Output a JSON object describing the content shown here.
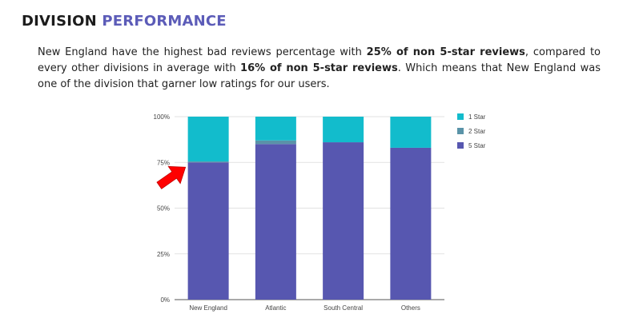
{
  "header": {
    "title_part1": "DIVISION",
    "title_part2": "PERFORMANCE",
    "accent_color": "#5c5cb8"
  },
  "description": {
    "text_1": "New England have the highest bad reviews percentage with ",
    "bold_1": "25% of non 5-star reviews",
    "text_2": ", compared to every other divisions in average with ",
    "bold_2": "16% of non 5-star reviews",
    "text_3": ". Which means that New England was one of the division that garner low ratings for our users."
  },
  "chart_data": {
    "type": "bar",
    "stacked": true,
    "categories": [
      "New England",
      "Atlantic",
      "South Central",
      "Others"
    ],
    "series": [
      {
        "name": "5 Star",
        "color": "#5757b0",
        "values": [
          75,
          85,
          86,
          83
        ]
      },
      {
        "name": "2 Star",
        "color": "#5a93a8",
        "values": [
          0.5,
          2,
          0,
          0
        ]
      },
      {
        "name": "1 Star",
        "color": "#12bccc",
        "values": [
          24.5,
          13,
          14,
          17
        ]
      }
    ],
    "legend_order": [
      "1 Star",
      "2 Star",
      "5 Star"
    ],
    "legend_position": "right",
    "y_ticks": [
      "0%",
      "25%",
      "50%",
      "75%",
      "100%"
    ],
    "ylim": [
      0,
      100
    ],
    "grid": true,
    "annotation": {
      "type": "arrow",
      "icon": "red-arrow-icon",
      "color": "#ff0000",
      "target_category": "New England",
      "target_value": 75
    }
  }
}
